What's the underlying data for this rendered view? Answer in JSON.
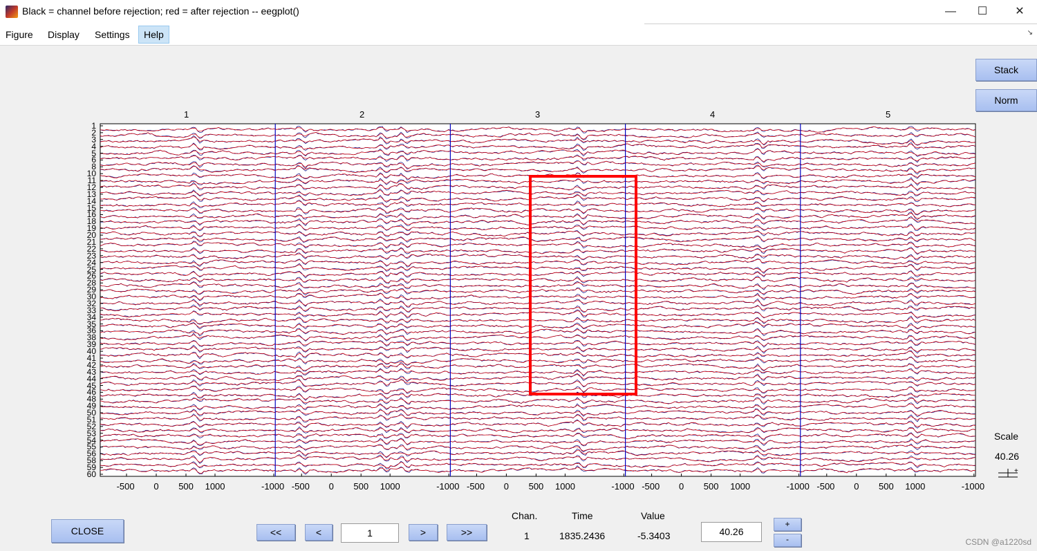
{
  "window": {
    "title": "Black = channel before rejection; red = after rejection -- eegplot()",
    "minimize": "—",
    "maximize": "☐",
    "close": "✕"
  },
  "menu": [
    "Figure",
    "Display",
    "Settings",
    "Help"
  ],
  "menu_active": "Help",
  "buttons": {
    "stack": "Stack",
    "norm": "Norm",
    "close": "CLOSE",
    "first": "<<",
    "prev": "<",
    "next": ">",
    "last": ">>",
    "plus": "+",
    "minus": "-"
  },
  "page_input": "1",
  "scale_input": "40.26",
  "epochs": [
    "1",
    "2",
    "3",
    "4",
    "5"
  ],
  "epoch_ticks": [
    "-500",
    "0",
    "500",
    "1000",
    "-1000"
  ],
  "channels": [
    "1",
    "2",
    "3",
    "4",
    "5",
    "6",
    "8",
    "10",
    "11",
    "12",
    "13",
    "14",
    "15",
    "16",
    "18",
    "19",
    "20",
    "21",
    "22",
    "23",
    "24",
    "25",
    "26",
    "28",
    "29",
    "30",
    "32",
    "33",
    "34",
    "35",
    "36",
    "38",
    "39",
    "40",
    "41",
    "42",
    "43",
    "44",
    "45",
    "46",
    "48",
    "49",
    "50",
    "51",
    "52",
    "53",
    "54",
    "55",
    "56",
    "58",
    "59",
    "60"
  ],
  "info": {
    "chan_label": "Chan.",
    "time_label": "Time",
    "value_label": "Value",
    "chan_value": "1",
    "time_value": "1835.2436",
    "value_value": "-5.3403"
  },
  "scale": {
    "label": "Scale",
    "value": "40.26"
  },
  "watermark": "CSDN @a1220sd",
  "colors": {
    "after_rejection": "#e00000",
    "before_rejection": "#000080",
    "highlight_box": "#ff0000",
    "button_bg": "#b8ccf4"
  }
}
